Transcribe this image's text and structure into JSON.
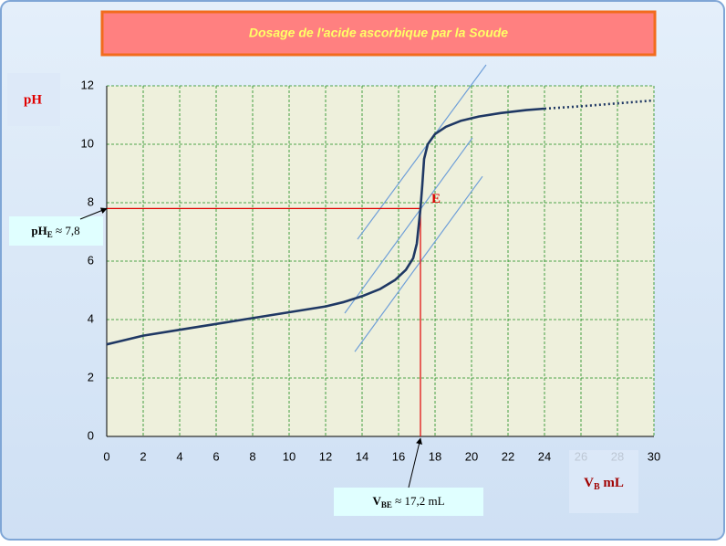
{
  "chart_data": {
    "type": "line",
    "title": "Dosage de l'acide ascorbique par la Soude",
    "y_label": "pH",
    "x_label": {
      "main": "V",
      "sub": "B",
      "rest": " mL"
    },
    "xlim": [
      0,
      30
    ],
    "xticks": [
      0,
      2,
      4,
      6,
      8,
      10,
      12,
      14,
      16,
      18,
      20,
      22,
      24,
      26,
      28,
      30
    ],
    "ylim": [
      0,
      12
    ],
    "yticks": [
      0,
      2,
      4,
      6,
      8,
      10,
      12
    ],
    "grid": true,
    "series": [
      {
        "color": "#1f3864",
        "dash": "solid",
        "x": [
          0,
          2,
          4,
          6,
          8,
          10,
          12,
          13,
          14,
          15,
          15.8,
          16.4,
          16.8,
          17.0,
          17.1,
          17.2,
          17.3,
          17.4,
          17.6,
          18,
          18.6,
          19.4,
          20.4,
          21.6,
          23,
          24
        ],
        "values": [
          3.15,
          3.45,
          3.65,
          3.85,
          4.05,
          4.25,
          4.45,
          4.6,
          4.8,
          5.05,
          5.35,
          5.7,
          6.1,
          6.6,
          7.2,
          7.8,
          8.6,
          9.5,
          10.0,
          10.35,
          10.6,
          10.8,
          10.95,
          11.07,
          11.17,
          11.22
        ]
      },
      {
        "color": "#1f3864",
        "dash": "dotted",
        "x": [
          24,
          26,
          28,
          30
        ],
        "values": [
          11.22,
          11.3,
          11.4,
          11.5
        ]
      }
    ],
    "tangents": [
      {
        "x": [
          13.75,
          20.8
        ],
        "values": [
          6.75,
          12.72
        ]
      },
      {
        "x": [
          13.05,
          20.05
        ],
        "values": [
          4.22,
          10.22
        ]
      },
      {
        "x": [
          13.6,
          20.6
        ],
        "values": [
          2.9,
          8.9
        ]
      }
    ],
    "equivalence": {
      "label": "E",
      "x": 17.2,
      "y": 7.8
    },
    "annotations": [
      {
        "main": "pH",
        "sub": "E",
        "rest": " ≈ 7,8"
      },
      {
        "main": "V",
        "sub": "BE",
        "rest": " ≈ 17,2 mL"
      }
    ]
  }
}
